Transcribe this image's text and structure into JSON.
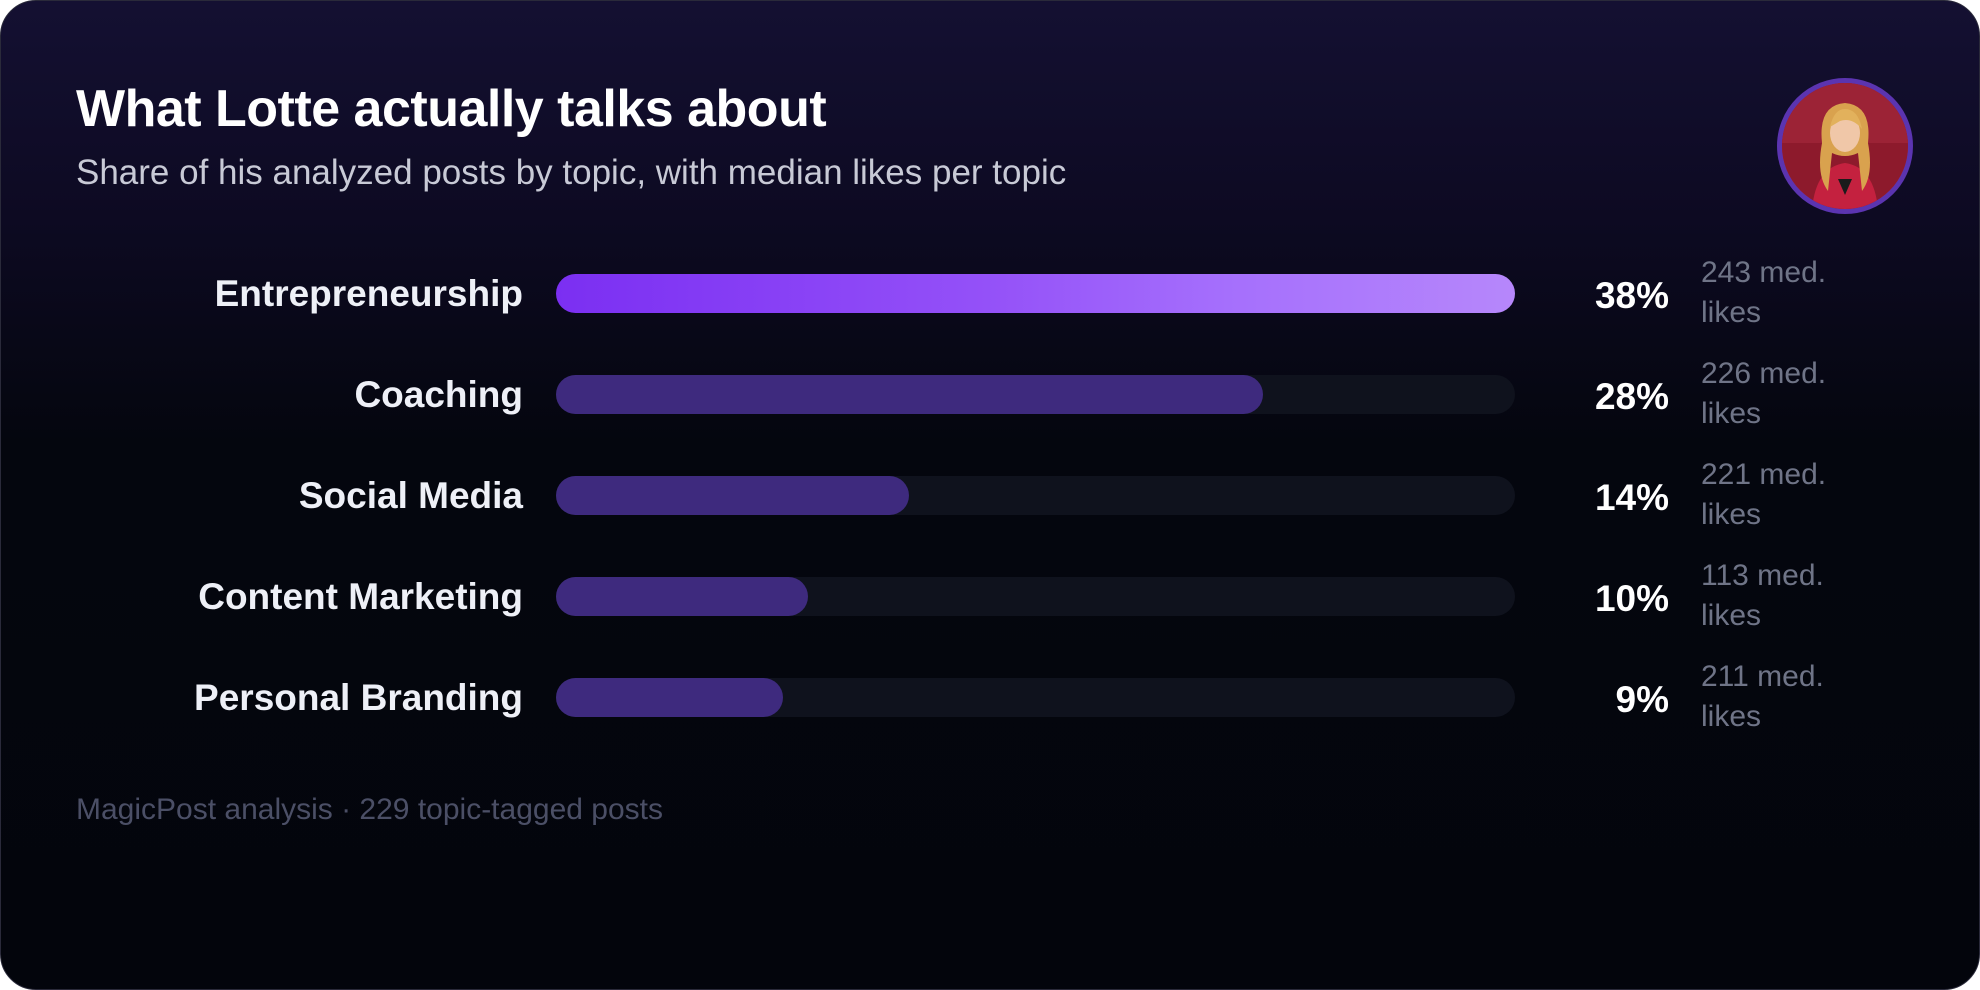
{
  "header": {
    "title": "What Lotte actually talks about",
    "subtitle": "Share of his analyzed posts by topic, with median likes per topic"
  },
  "colors": {
    "top_bar_start": "#7b2ff2",
    "top_bar_end": "#b687fb",
    "bar": "#3e2a7e",
    "track": "#0f121d",
    "avatar_ring": "#5b34b0"
  },
  "avatar": {
    "icon": "profile-photo"
  },
  "chart_data": {
    "type": "bar",
    "orientation": "horizontal",
    "categories": [
      "Entrepreneurship",
      "Coaching",
      "Social Media",
      "Content Marketing",
      "Personal Branding"
    ],
    "values": [
      38,
      28,
      14,
      10,
      9
    ],
    "value_labels": [
      "38%",
      "28%",
      "14%",
      "10%",
      "9%"
    ],
    "median_likes_labels": [
      "243 med. likes",
      "226 med. likes",
      "221 med. likes",
      "113 med. likes",
      "211 med. likes"
    ],
    "xlim": [
      0,
      38
    ],
    "grid": false,
    "highlighted_category": "Entrepreneurship"
  },
  "footer": {
    "note": "MagicPost analysis · 229 topic-tagged posts"
  }
}
